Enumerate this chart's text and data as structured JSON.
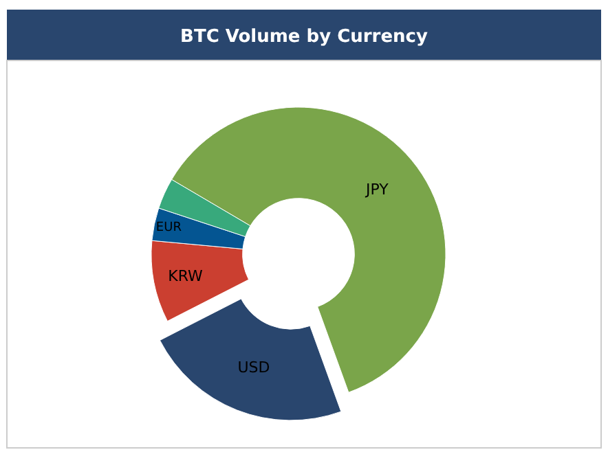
{
  "chart_data": {
    "type": "donut",
    "title": "BTC Volume by Currency",
    "categories": [
      "JPY",
      "USD",
      "KRW",
      "EUR",
      null
    ],
    "values": [
      61,
      23,
      9,
      3.6,
      3.4
    ],
    "colors": [
      "#7aa54a",
      "#29466e",
      "#cb3f30",
      "#045592",
      "#38a97c"
    ],
    "legend": false
  }
}
